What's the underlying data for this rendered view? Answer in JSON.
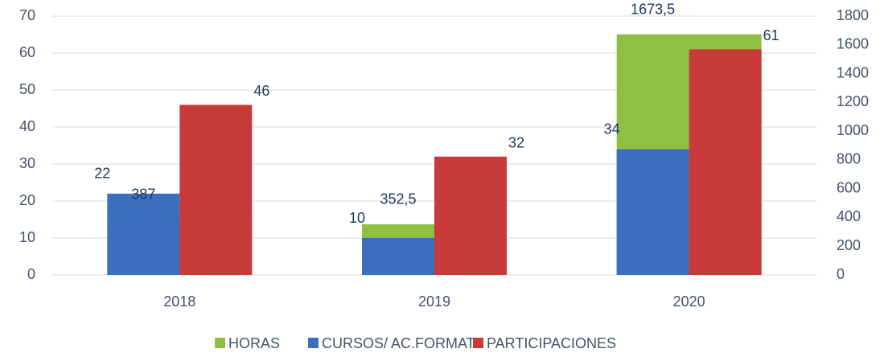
{
  "chart_data": {
    "type": "bar",
    "categories": [
      "2018",
      "2019",
      "2020"
    ],
    "series": [
      {
        "name": "HORAS",
        "color": "#8fc043",
        "axis": "y2",
        "values": [
          387,
          352.5,
          1673.5
        ],
        "value_labels": [
          "387",
          "352,5",
          "1673,5"
        ]
      },
      {
        "name": "CURSOS/ AC.FORMAT",
        "color": "#3b6fbd",
        "values": [
          22,
          10,
          34
        ]
      },
      {
        "name": "PARTICIPACIONES",
        "color": "#c83a3a",
        "values": [
          46,
          32,
          61
        ]
      }
    ],
    "ylim": [
      0,
      70
    ],
    "yticks": [
      0,
      10,
      20,
      30,
      40,
      50,
      60,
      70
    ],
    "y2lim": [
      0,
      1800
    ],
    "y2ticks": [
      0,
      200,
      400,
      600,
      800,
      1000,
      1200,
      1400,
      1600,
      1800
    ],
    "grid": true,
    "legend": "bottom"
  }
}
